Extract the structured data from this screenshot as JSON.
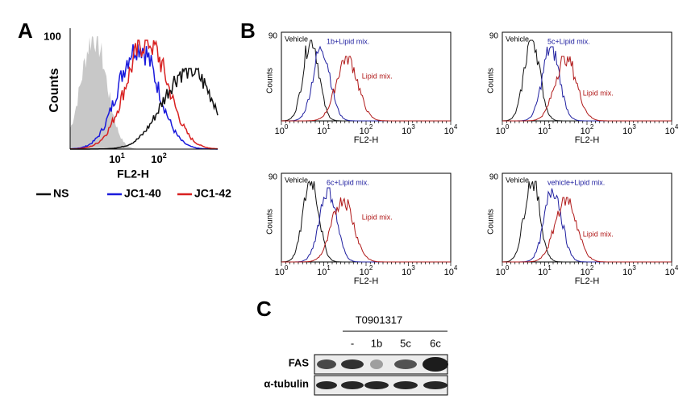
{
  "panel_a": {
    "label": "A",
    "ylabel": "Counts",
    "ytick": "100",
    "xlabel": "FL2-H",
    "xtick_base": "10",
    "xtick_exps": [
      "1",
      "2"
    ],
    "legend": [
      "NS",
      "JC1-40",
      "JC1-42"
    ]
  },
  "panel_b": {
    "label": "B",
    "plots": [
      {
        "ylabel": "Counts",
        "ytick": "90",
        "xlabel": "FL2-H",
        "xtick_base": "10",
        "xtick_exps": [
          "0",
          "1",
          "2",
          "3",
          "4"
        ],
        "vehicle": "Vehicle",
        "treatment": "1b+Lipid mix.",
        "lipid": "Lipid mix."
      },
      {
        "ylabel": "Counts",
        "ytick": "90",
        "xlabel": "FL2-H",
        "xtick_base": "10",
        "xtick_exps": [
          "0",
          "1",
          "2",
          "3",
          "4"
        ],
        "vehicle": "Vehicle",
        "treatment": "5c+Lipid mix.",
        "lipid": "Lipid mix."
      },
      {
        "ylabel": "Counts",
        "ytick": "90",
        "xlabel": "FL2-H",
        "xtick_base": "10",
        "xtick_exps": [
          "0",
          "1",
          "2",
          "3",
          "4"
        ],
        "vehicle": "Vehicle",
        "treatment": "6c+Lipid mix.",
        "lipid": "Lipid mix."
      },
      {
        "ylabel": "Counts",
        "ytick": "90",
        "xlabel": "FL2-H",
        "xtick_base": "10",
        "xtick_exps": [
          "0",
          "1",
          "2",
          "3",
          "4"
        ],
        "vehicle": "Vehicle",
        "treatment": "vehicle+Lipid mix.",
        "lipid": "Lipid mix."
      }
    ]
  },
  "panel_c": {
    "label": "C",
    "treatment": "T0901317",
    "lanes": [
      "-",
      "1b",
      "5c",
      "6c"
    ],
    "rows": [
      "FAS",
      "α-tubulin"
    ]
  }
}
